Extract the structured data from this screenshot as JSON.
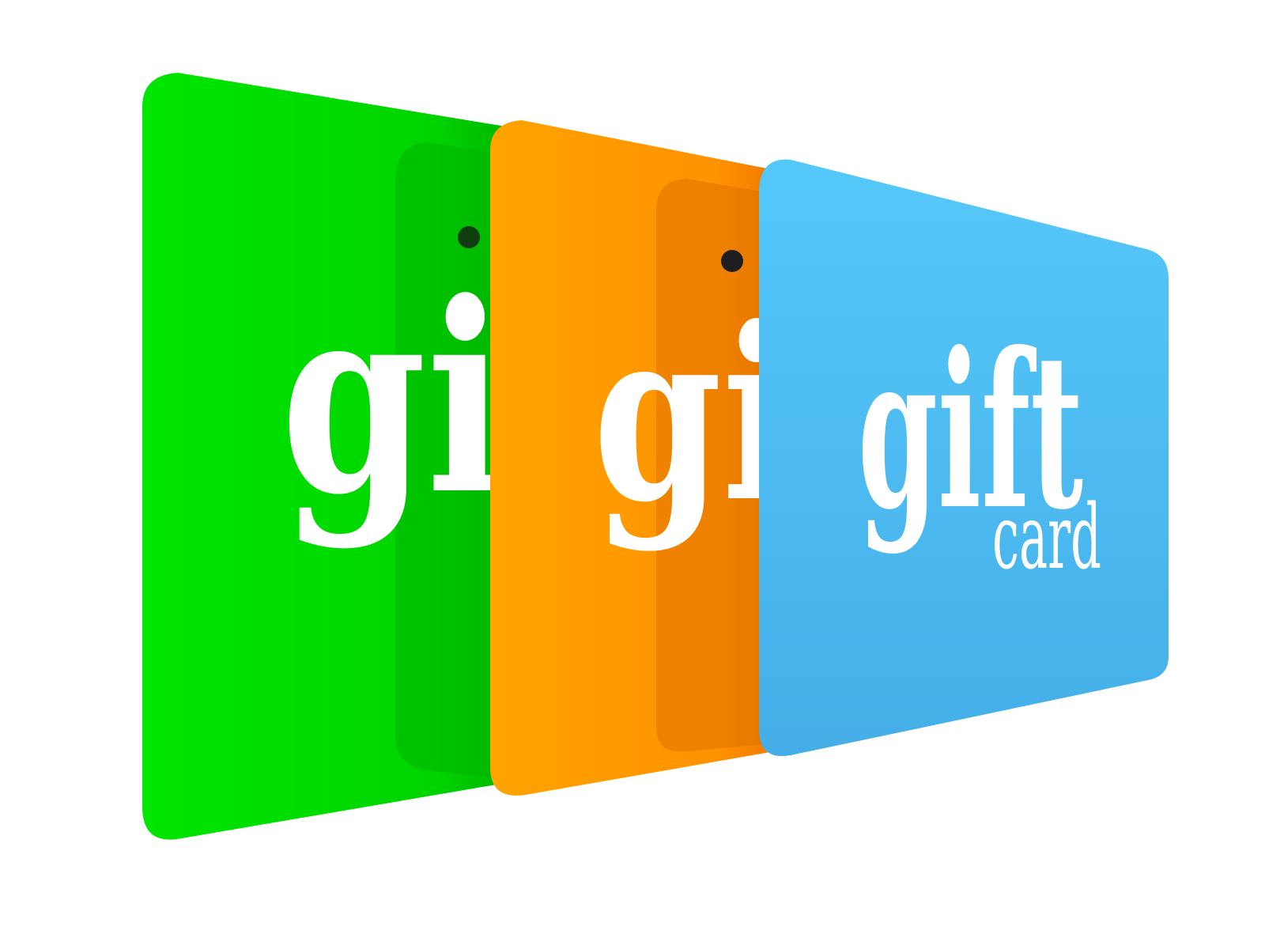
{
  "cards": [
    {
      "name": "green-card",
      "color": "#00e600",
      "word": "gift"
    },
    {
      "name": "orange-card",
      "color": "#ff9a00",
      "word": "gift"
    },
    {
      "name": "blue-card",
      "color": "#50c0f5",
      "word": "gift",
      "sub": "card"
    }
  ]
}
